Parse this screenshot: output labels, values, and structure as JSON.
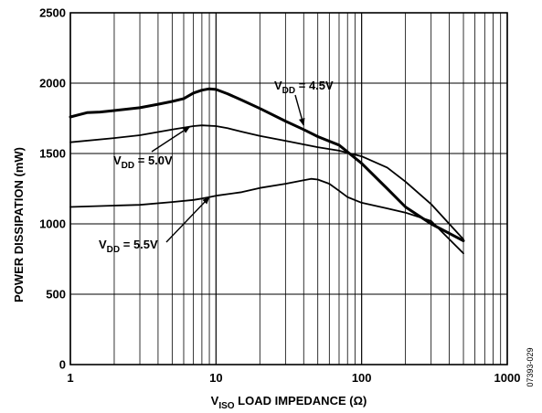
{
  "chart_data": {
    "type": "line",
    "title": "",
    "xlabel": "V_ISO LOAD IMPEDANCE (Ω)",
    "xlabel_parts": {
      "main": "V",
      "sub": "ISO",
      "rest": " LOAD IMPEDANCE (Ω)"
    },
    "ylabel": "POWER DISSIPATION (mW)",
    "x_scale": "log",
    "xlim": [
      1,
      1000
    ],
    "ylim": [
      0,
      2500
    ],
    "x_ticks": [
      1,
      10,
      100,
      1000
    ],
    "x_tick_labels": [
      "1",
      "10",
      "100",
      "1000"
    ],
    "y_ticks": [
      0,
      500,
      1000,
      1500,
      2000,
      2500
    ],
    "y_tick_labels": [
      "0",
      "500",
      "1000",
      "1500",
      "2000",
      "2500"
    ],
    "grid": true,
    "series": [
      {
        "name": "VDD = 4.5V",
        "label": {
          "main": "V",
          "sub": "DD",
          "rest": " = 4.5V"
        },
        "stroke": "bold",
        "x": [
          1,
          1.3,
          1.6,
          2,
          3,
          4,
          5,
          6,
          7,
          8,
          9,
          10,
          12,
          15,
          20,
          30,
          40,
          50,
          70,
          100,
          150,
          200,
          300,
          500
        ],
        "y": [
          1760,
          1790,
          1795,
          1805,
          1825,
          1850,
          1870,
          1890,
          1930,
          1950,
          1960,
          1955,
          1925,
          1880,
          1820,
          1730,
          1670,
          1620,
          1560,
          1430,
          1250,
          1120,
          1000,
          880
        ]
      },
      {
        "name": "VDD = 5.0V",
        "label": {
          "main": "V",
          "sub": "DD",
          "rest": " = 5.0V"
        },
        "stroke": "thin",
        "x": [
          1,
          2,
          3,
          5,
          7,
          8,
          10,
          12,
          15,
          20,
          30,
          50,
          70,
          100,
          150,
          200,
          300,
          500
        ],
        "y": [
          1580,
          1610,
          1630,
          1670,
          1695,
          1700,
          1695,
          1680,
          1655,
          1625,
          1590,
          1545,
          1520,
          1480,
          1400,
          1300,
          1140,
          890
        ]
      },
      {
        "name": "VDD = 5.5V",
        "label": {
          "main": "V",
          "sub": "DD",
          "rest": " = 5.5V"
        },
        "stroke": "thin",
        "x": [
          1,
          2,
          3,
          5,
          7,
          8,
          9,
          10,
          15,
          20,
          30,
          40,
          45,
          50,
          60,
          70,
          80,
          100,
          150,
          200,
          300,
          500
        ],
        "y": [
          1120,
          1130,
          1135,
          1155,
          1170,
          1180,
          1190,
          1200,
          1225,
          1255,
          1285,
          1310,
          1320,
          1315,
          1285,
          1235,
          1190,
          1150,
          1110,
          1080,
          1020,
          790
        ]
      }
    ],
    "annotations": [
      "VDD = 4.5V",
      "VDD = 5.0V",
      "VDD = 5.5V"
    ],
    "figure_id": "07393-029"
  }
}
